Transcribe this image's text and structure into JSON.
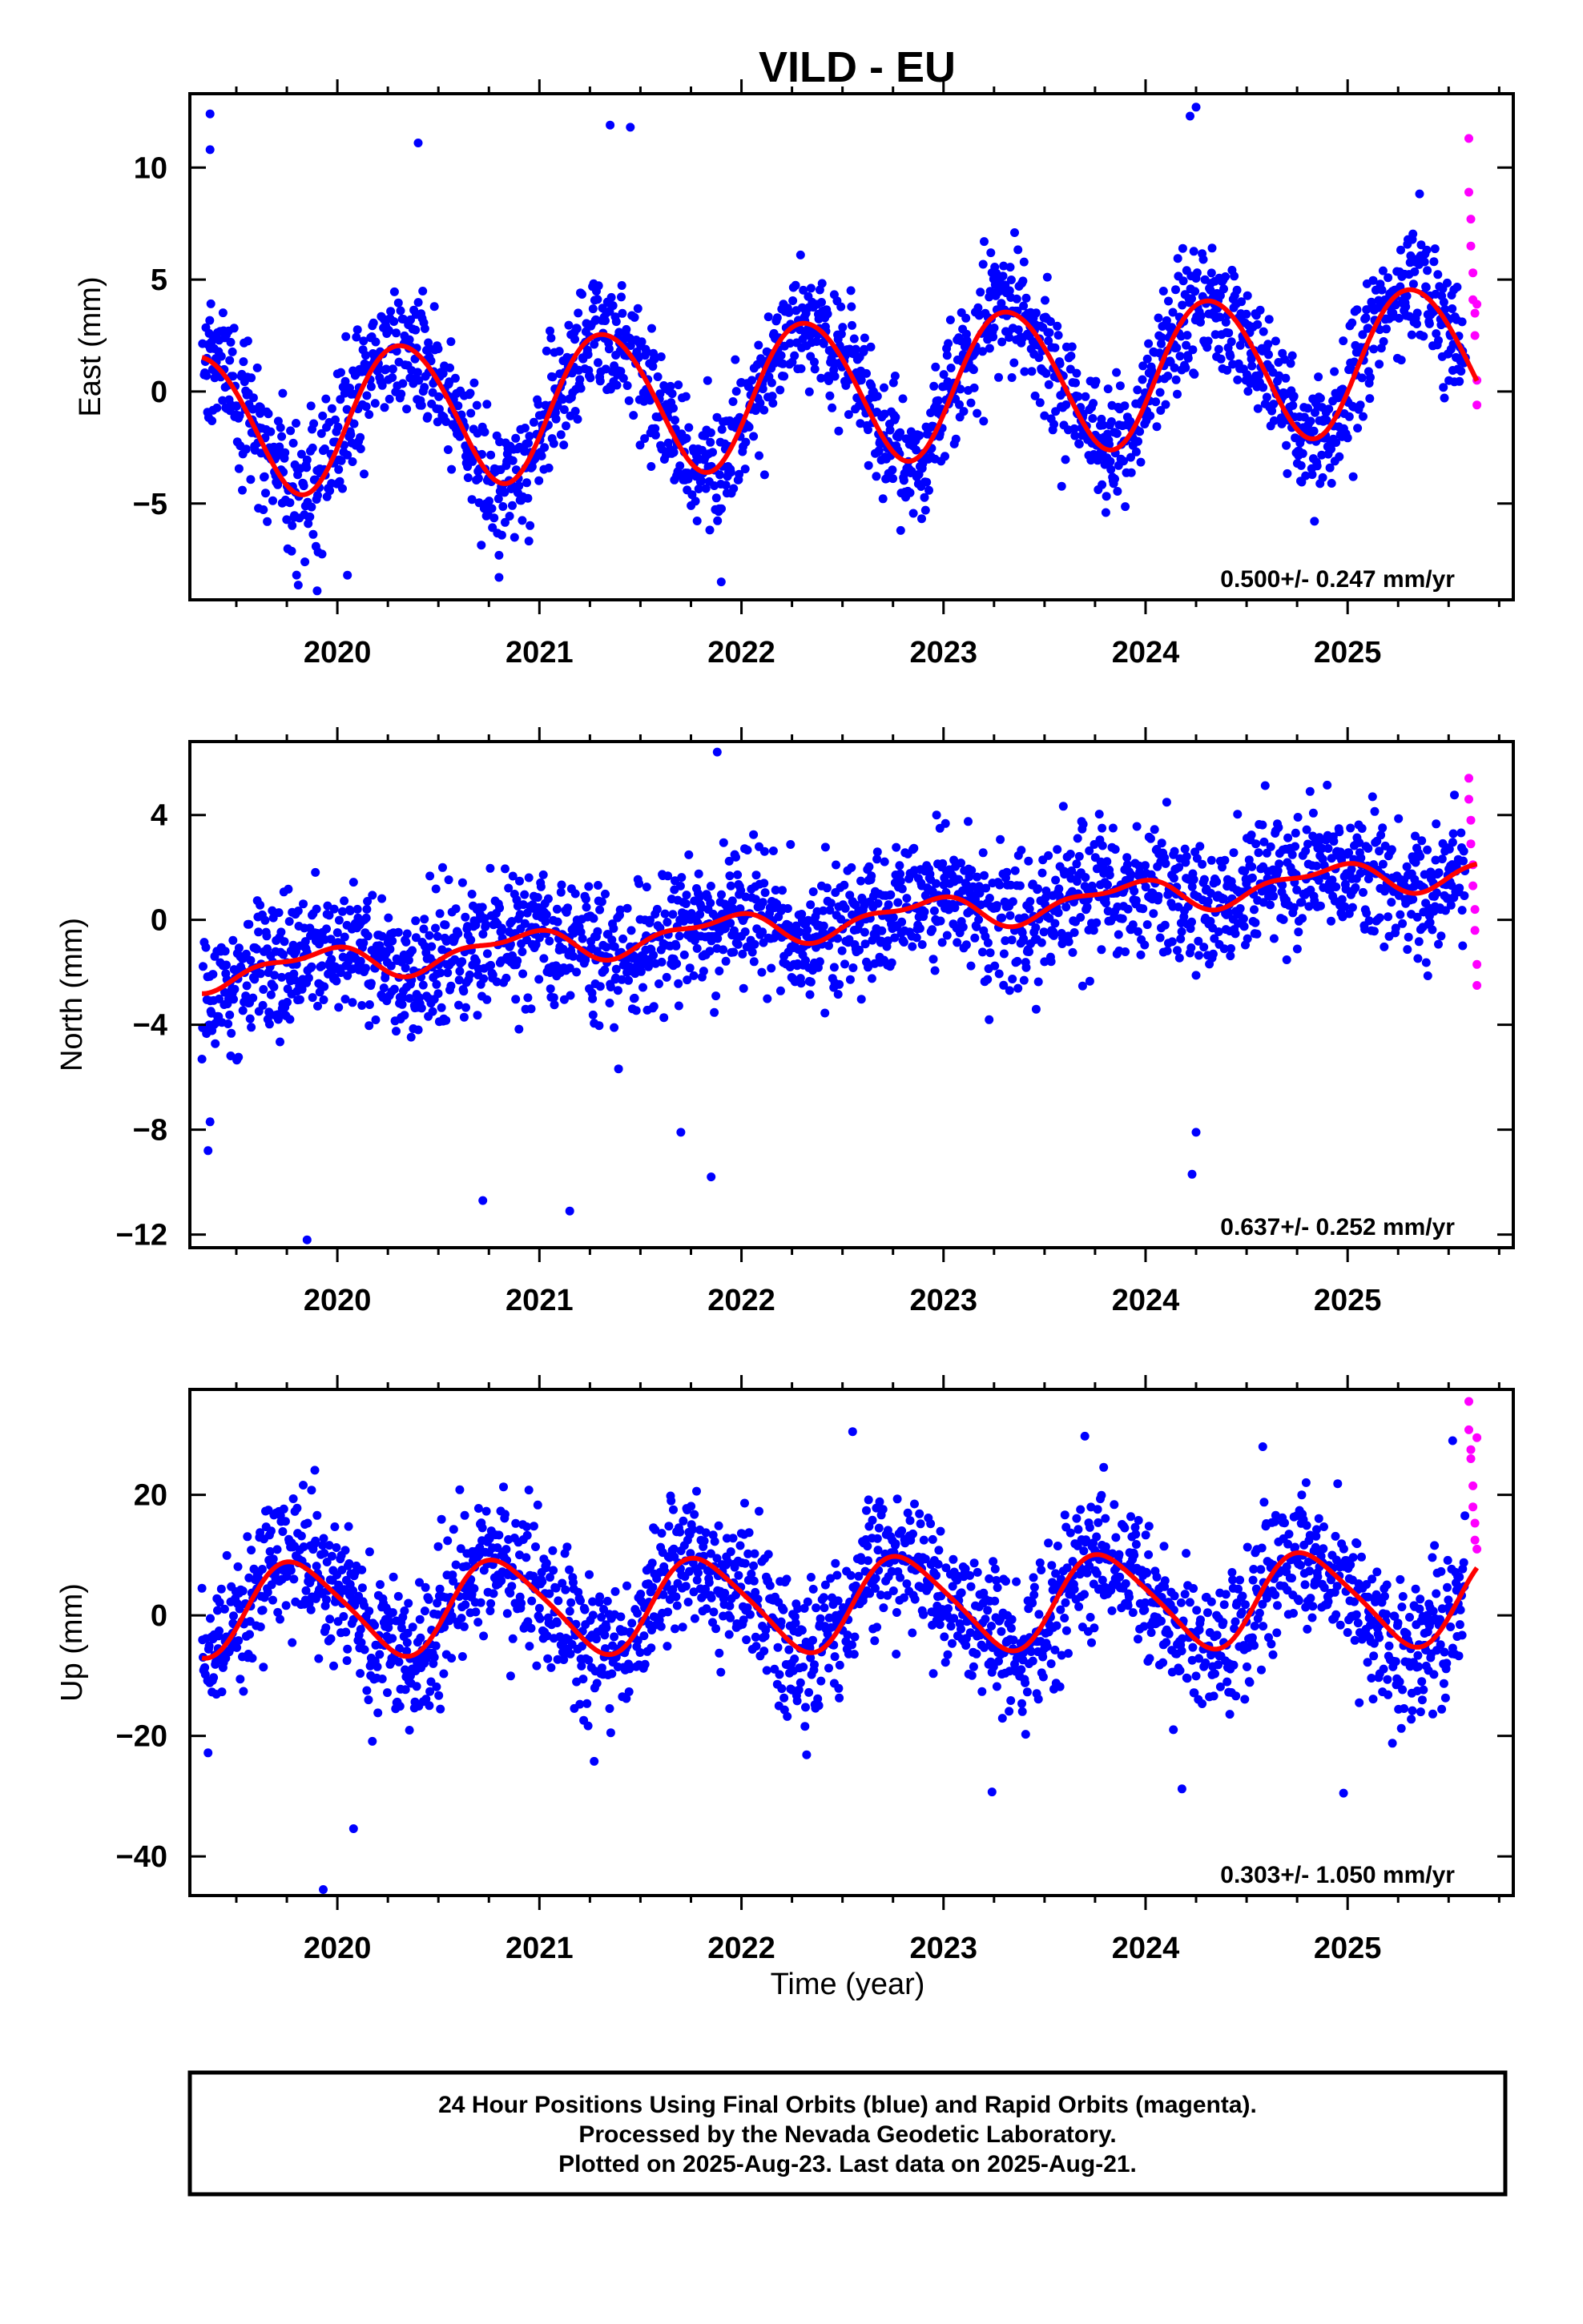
{
  "title": "VILD - EU",
  "xlabel": "Time (year)",
  "caption": [
    "24 Hour Positions Using Final Orbits (blue) and Rapid Orbits (magenta).",
    "Processed by the Nevada Geodetic Laboratory.",
    "Plotted on 2025-Aug-23. Last data on 2025-Aug-21."
  ],
  "colors": {
    "final_orbits": "#0000ff",
    "rapid_orbits": "#ff00ff",
    "model_fit": "#ff0000"
  },
  "chart_data": [
    {
      "type": "scatter",
      "component": "east",
      "ylabel": "East (mm)",
      "xlim": [
        2019.27,
        2025.82
      ],
      "ylim": [
        -9.3,
        13.3
      ],
      "yticks": [
        -5,
        0,
        5,
        10
      ],
      "xticks": [
        2020,
        2021,
        2022,
        2023,
        2024,
        2025
      ],
      "x_start": 2019.33,
      "x_final_end": 2025.585,
      "x_rapid_end": 2025.64,
      "rate": "0.500+/- 0.247 mm/yr",
      "model": {
        "offset": -1.5,
        "rate_mm_yr": 0.5,
        "annual_amp": 3.2,
        "annual_phase_deg": -25,
        "semiannual_amp": 0.2,
        "semiannual_phase_deg": 0
      },
      "scatter_sd": 1.4,
      "outliers": [
        [
          2019.37,
          12.4
        ],
        [
          2019.37,
          10.8
        ],
        [
          2020.4,
          11.1
        ],
        [
          2021.35,
          11.9
        ],
        [
          2021.45,
          11.8
        ],
        [
          2024.25,
          12.7
        ],
        [
          2024.22,
          12.3
        ],
        [
          2019.9,
          -8.9
        ],
        [
          2020.05,
          -8.2
        ],
        [
          2020.8,
          -8.3
        ],
        [
          2021.9,
          -8.5
        ]
      ],
      "rapid_points": [
        [
          2025.6,
          11.3
        ],
        [
          2025.6,
          8.9
        ],
        [
          2025.61,
          7.7
        ],
        [
          2025.61,
          6.5
        ],
        [
          2025.62,
          5.3
        ],
        [
          2025.62,
          4.1
        ],
        [
          2025.63,
          3.5
        ],
        [
          2025.63,
          2.5
        ],
        [
          2025.64,
          0.5
        ],
        [
          2025.64,
          -0.6
        ],
        [
          2025.64,
          3.9
        ]
      ]
    },
    {
      "type": "scatter",
      "component": "north",
      "ylabel": "North (mm)",
      "xlim": [
        2019.27,
        2025.82
      ],
      "ylim": [
        -12.5,
        6.8
      ],
      "yticks": [
        -12,
        -8,
        -4,
        0,
        4
      ],
      "xticks": [
        2020,
        2021,
        2022,
        2023,
        2024,
        2025
      ],
      "x_start": 2019.33,
      "x_final_end": 2025.585,
      "x_rapid_end": 2025.64,
      "rate": "0.637+/- 0.252 mm/yr",
      "model": {
        "offset": -2.05,
        "rate_mm_yr": 0.637,
        "annual_amp": 0.55,
        "annual_phase_deg": 130,
        "semiannual_amp": 0.25,
        "semiannual_phase_deg": 40
      },
      "scatter_sd": 1.25,
      "outliers": [
        [
          2019.37,
          -7.7
        ],
        [
          2019.36,
          -8.8
        ],
        [
          2019.85,
          -12.2
        ],
        [
          2020.72,
          -10.7
        ],
        [
          2021.15,
          -11.1
        ],
        [
          2021.7,
          -8.1
        ],
        [
          2021.85,
          -9.8
        ],
        [
          2024.23,
          -9.7
        ],
        [
          2024.25,
          -8.1
        ],
        [
          2021.88,
          6.4
        ]
      ],
      "rapid_points": [
        [
          2025.6,
          5.4
        ],
        [
          2025.6,
          4.6
        ],
        [
          2025.61,
          3.8
        ],
        [
          2025.61,
          2.9
        ],
        [
          2025.62,
          2.1
        ],
        [
          2025.62,
          1.3
        ],
        [
          2025.63,
          0.4
        ],
        [
          2025.63,
          -0.4
        ],
        [
          2025.64,
          -1.7
        ],
        [
          2025.64,
          -2.5
        ]
      ]
    },
    {
      "type": "scatter",
      "component": "up",
      "ylabel": "Up (mm)",
      "xlim": [
        2019.27,
        2025.82
      ],
      "ylim": [
        -46.5,
        37.5
      ],
      "yticks": [
        -40,
        -20,
        0,
        20
      ],
      "xticks": [
        2020,
        2021,
        2022,
        2023,
        2024,
        2025
      ],
      "x_start": 2019.33,
      "x_final_end": 2025.585,
      "x_rapid_end": 2025.64,
      "rate": "0.303+/- 1.050 mm/yr",
      "model": {
        "offset": 1.0,
        "rate_mm_yr": 0.303,
        "annual_amp": 7.6,
        "annual_phase_deg": 160,
        "semiannual_amp": 1.2,
        "semiannual_phase_deg": -30
      },
      "scatter_sd": 5.8,
      "outliers": [
        [
          2019.93,
          -45.5
        ],
        [
          2020.08,
          -35.4
        ],
        [
          2023.24,
          -29.3
        ],
        [
          2024.18,
          -28.8
        ],
        [
          2024.98,
          -29.5
        ],
        [
          2022.55,
          30.5
        ],
        [
          2024.58,
          28.0
        ],
        [
          2025.52,
          29.0
        ]
      ],
      "rapid_points": [
        [
          2025.6,
          35.5
        ],
        [
          2025.6,
          30.8
        ],
        [
          2025.61,
          27.5
        ],
        [
          2025.61,
          26.0
        ],
        [
          2025.62,
          21.5
        ],
        [
          2025.62,
          18.0
        ],
        [
          2025.63,
          15.3
        ],
        [
          2025.63,
          12.5
        ],
        [
          2025.64,
          11.0
        ],
        [
          2025.64,
          29.5
        ]
      ]
    }
  ]
}
